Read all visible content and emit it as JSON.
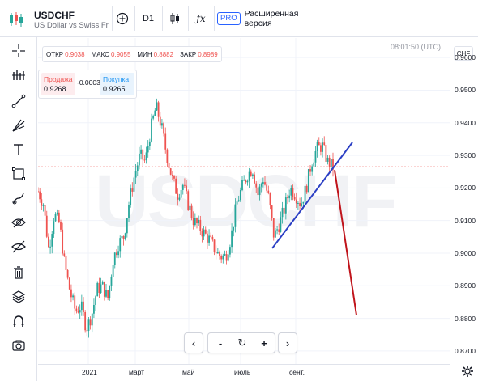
{
  "header": {
    "symbol": "USDCHF",
    "description": "US Dollar vs Swiss Franc",
    "interval": "D1",
    "pro_badge": "PRO",
    "pro_text": "Расширенная версия"
  },
  "ohlc": {
    "open_label": "ОТКР",
    "open": "0.9038",
    "high_label": "МАКС",
    "high": "0.9055",
    "low_label": "МИН",
    "low": "0.8882",
    "close_label": "ЗАКР",
    "close": "0.8989"
  },
  "trade": {
    "sell_label": "Продажа",
    "sell": "0.9268",
    "spread": "-0.0003",
    "buy_label": "Покупка",
    "buy": "0.9265"
  },
  "timestamp": "08:01:50 (UTC)",
  "watermark": "USDCHF",
  "price_axis": {
    "currency": "CHF",
    "ticks": [
      "0.9600",
      "0.9500",
      "0.9400",
      "0.9300",
      "0.9200",
      "0.9100",
      "0.9000",
      "0.8900",
      "0.8800",
      "0.8700"
    ]
  },
  "time_axis": {
    "ticks": [
      "2021",
      "март",
      "май",
      "июль",
      "сент."
    ]
  },
  "nav": {
    "prev": "‹",
    "zoom_out": "-",
    "reset": "↻",
    "zoom_in": "+",
    "next": "›"
  },
  "colors": {
    "up": "#26a69a",
    "down": "#ef5350",
    "blue_trendline": "#2b3fc4",
    "red_trendline": "#c0141b",
    "price_line": "#ef5350"
  },
  "chart_data": {
    "type": "candlestick",
    "symbol": "USDCHF",
    "timeframe": "D1",
    "ylim": [
      0.866,
      0.966
    ],
    "current_price": 0.9265,
    "x_ticks": [
      "2021",
      "март",
      "май",
      "июль",
      "сент."
    ],
    "y_ticks": [
      0.96,
      0.95,
      0.94,
      0.93,
      0.92,
      0.91,
      0.9,
      0.89,
      0.88,
      0.87
    ],
    "close_path": [
      0.919,
      0.915,
      0.901,
      0.912,
      0.909,
      0.896,
      0.888,
      0.882,
      0.884,
      0.877,
      0.881,
      0.889,
      0.89,
      0.886,
      0.898,
      0.903,
      0.905,
      0.916,
      0.924,
      0.93,
      0.928,
      0.938,
      0.945,
      0.939,
      0.93,
      0.923,
      0.918,
      0.921,
      0.915,
      0.91,
      0.908,
      0.906,
      0.904,
      0.901,
      0.899,
      0.899,
      0.905,
      0.915,
      0.92,
      0.924,
      0.926,
      0.918,
      0.923,
      0.917,
      0.905,
      0.909,
      0.914,
      0.92,
      0.918,
      0.915,
      0.92,
      0.928,
      0.932,
      0.933,
      0.928,
      0.9265
    ]
  }
}
